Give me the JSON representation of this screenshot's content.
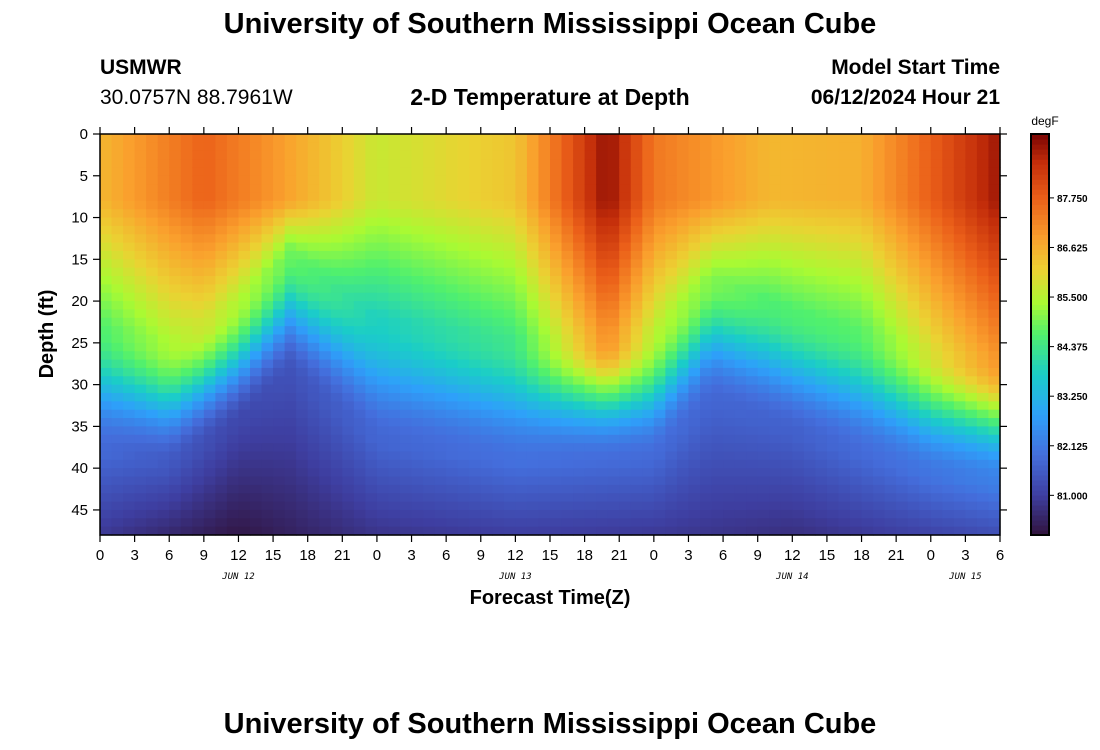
{
  "header": {
    "title": "University of Southern Mississippi Ocean Cube",
    "station_id": "USMWR",
    "coordinates": "30.0757N  88.7961W",
    "subtitle": "2-D Temperature at Depth",
    "model_label": "Model Start Time",
    "model_time": "06/12/2024 Hour 21"
  },
  "footer": {
    "title": "University of Southern Mississippi Ocean Cube"
  },
  "chart_data": {
    "type": "heatmap",
    "title": "2-D Temperature at Depth",
    "xlabel": "Forecast Time(Z)",
    "ylabel": "Depth (ft)",
    "x_unit": "hours from JUN 12 00Z",
    "xlim": [
      0,
      78
    ],
    "ylim": [
      0,
      48
    ],
    "y_inverted": true,
    "x_ticks": [
      0,
      3,
      6,
      9,
      12,
      15,
      18,
      21,
      24,
      27,
      30,
      33,
      36,
      39,
      42,
      45,
      48,
      51,
      54,
      57,
      60,
      63,
      66,
      69,
      72,
      75,
      78
    ],
    "x_tick_labels": [
      "0",
      "3",
      "6",
      "9",
      "12",
      "15",
      "18",
      "21",
      "0",
      "3",
      "6",
      "9",
      "12",
      "15",
      "18",
      "21",
      "0",
      "3",
      "6",
      "9",
      "12",
      "15",
      "18",
      "21",
      "0",
      "3",
      "6"
    ],
    "y_ticks": [
      0,
      5,
      10,
      15,
      20,
      25,
      30,
      35,
      40,
      45
    ],
    "y_tick_labels": [
      "0",
      "5",
      "10",
      "15",
      "20",
      "25",
      "30",
      "35",
      "40",
      "45"
    ],
    "date_labels": [
      {
        "x": 12,
        "label": "JUN 12"
      },
      {
        "x": 36,
        "label": "JUN 13"
      },
      {
        "x": 60,
        "label": "JUN 14"
      },
      {
        "x": 75,
        "label": "JUN 15"
      }
    ],
    "colorbar": {
      "unit": "degF",
      "min": 80.1,
      "max": 89.2,
      "ticks": [
        81.0,
        82.125,
        83.25,
        84.375,
        85.5,
        86.625,
        87.75
      ],
      "tick_labels": [
        "81.000",
        "82.125",
        "83.250",
        "84.375",
        "85.500",
        "86.625",
        "87.750"
      ]
    },
    "thermocline_depth_ft": [
      {
        "x": 0,
        "depth": 29
      },
      {
        "x": 6,
        "depth": 31
      },
      {
        "x": 12,
        "depth": 26
      },
      {
        "x": 16.5,
        "depth": 20
      },
      {
        "x": 24,
        "depth": 28
      },
      {
        "x": 36,
        "depth": 30.5
      },
      {
        "x": 48,
        "depth": 30
      },
      {
        "x": 53,
        "depth": 23
      },
      {
        "x": 60,
        "depth": 27
      },
      {
        "x": 72,
        "depth": 32
      },
      {
        "x": 78,
        "depth": 33
      }
    ],
    "surface_temperature_degF": [
      {
        "x": 0,
        "value": 86.5
      },
      {
        "x": 9,
        "value": 87.7
      },
      {
        "x": 14,
        "value": 87.1
      },
      {
        "x": 20,
        "value": 86.3
      },
      {
        "x": 24,
        "value": 85.7
      },
      {
        "x": 36,
        "value": 86.3
      },
      {
        "x": 44,
        "value": 89.0
      },
      {
        "x": 48,
        "value": 87.4
      },
      {
        "x": 58,
        "value": 86.5
      },
      {
        "x": 66,
        "value": 86.6
      },
      {
        "x": 78,
        "value": 88.9
      }
    ],
    "bottom_temperature_degF": [
      {
        "x": 0,
        "value": 80.9
      },
      {
        "x": 12,
        "value": 80.2
      },
      {
        "x": 24,
        "value": 80.8
      },
      {
        "x": 36,
        "value": 81.0
      },
      {
        "x": 48,
        "value": 80.9
      },
      {
        "x": 60,
        "value": 80.7
      },
      {
        "x": 78,
        "value": 81.3
      }
    ]
  }
}
